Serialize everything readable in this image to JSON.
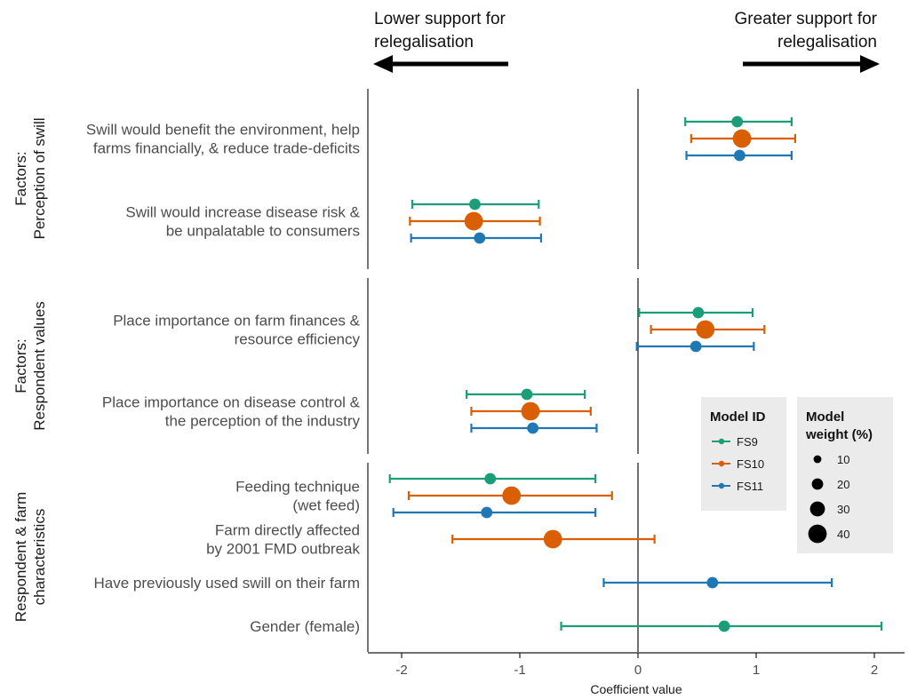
{
  "chart_data": {
    "type": "scatter",
    "title": "",
    "xlabel": "Coefficient value",
    "ylabel": "",
    "xlim": [
      -2.3,
      2.3
    ],
    "xticks": [
      -2,
      -1,
      0,
      1,
      2
    ],
    "xtick_labels": [
      "-2",
      "-1",
      "0",
      "1",
      "2"
    ],
    "grid": false,
    "direction_labels": {
      "lower": [
        "Lower support for",
        "relegalisation"
      ],
      "greater": [
        "Greater support for",
        "relegalisation"
      ]
    },
    "colors": {
      "FS9": "#1b9e77",
      "FS10": "#d95f02",
      "FS11": "#1f78b4"
    },
    "groups": [
      {
        "id": "perception",
        "label_lines": [
          "Factors:",
          "Perception of swill"
        ],
        "factors": [
          {
            "label_lines": [
              "Swill would benefit the environment, help",
              "farms financially, & reduce trade-deficits"
            ],
            "estimates": [
              {
                "model": "FS9",
                "coef": 0.84,
                "low": 0.4,
                "high": 1.3
              },
              {
                "model": "FS10",
                "coef": 0.88,
                "low": 0.45,
                "high": 1.33
              },
              {
                "model": "FS11",
                "coef": 0.86,
                "low": 0.41,
                "high": 1.3
              }
            ]
          },
          {
            "label_lines": [
              "Swill would increase disease risk &",
              "be unpalatable to consumers"
            ],
            "estimates": [
              {
                "model": "FS9",
                "coef": -1.38,
                "low": -1.91,
                "high": -0.84
              },
              {
                "model": "FS10",
                "coef": -1.39,
                "low": -1.93,
                "high": -0.83
              },
              {
                "model": "FS11",
                "coef": -1.34,
                "low": -1.92,
                "high": -0.82
              }
            ]
          }
        ]
      },
      {
        "id": "values",
        "label_lines": [
          "Factors:",
          "Respondent values"
        ],
        "factors": [
          {
            "label_lines": [
              "Place importance on farm finances &",
              "resource efficiency"
            ],
            "estimates": [
              {
                "model": "FS9",
                "coef": 0.51,
                "low": 0.01,
                "high": 0.97
              },
              {
                "model": "FS10",
                "coef": 0.57,
                "low": 0.11,
                "high": 1.07
              },
              {
                "model": "FS11",
                "coef": 0.49,
                "low": -0.01,
                "high": 0.98
              }
            ]
          },
          {
            "label_lines": [
              "Place importance on disease control &",
              "the perception of the industry"
            ],
            "estimates": [
              {
                "model": "FS9",
                "coef": -0.94,
                "low": -1.45,
                "high": -0.45
              },
              {
                "model": "FS10",
                "coef": -0.91,
                "low": -1.41,
                "high": -0.4
              },
              {
                "model": "FS11",
                "coef": -0.89,
                "low": -1.41,
                "high": -0.35
              }
            ]
          }
        ]
      },
      {
        "id": "characteristics",
        "label_lines": [
          "Respondent & farm",
          "characteristics"
        ],
        "factors": [
          {
            "label_lines": [
              "Feeding technique",
              "(wet feed)"
            ],
            "estimates": [
              {
                "model": "FS9",
                "coef": -1.25,
                "low": -2.1,
                "high": -0.36
              },
              {
                "model": "FS10",
                "coef": -1.07,
                "low": -1.94,
                "high": -0.22
              },
              {
                "model": "FS11",
                "coef": -1.28,
                "low": -2.07,
                "high": -0.36
              }
            ]
          },
          {
            "label_lines": [
              "Farm directly affected",
              "by 2001 FMD outbreak"
            ],
            "estimates": [
              {
                "model": "FS10",
                "coef": -0.72,
                "low": -1.57,
                "high": 0.14
              }
            ]
          },
          {
            "label_lines": [
              "Have previously used swill on their farm"
            ],
            "estimates": [
              {
                "model": "FS11",
                "coef": 0.63,
                "low": -0.29,
                "high": 1.64
              }
            ]
          },
          {
            "label_lines": [
              "Gender (female)"
            ],
            "estimates": [
              {
                "model": "FS9",
                "coef": 0.73,
                "low": -0.65,
                "high": 2.06
              }
            ]
          }
        ]
      }
    ],
    "legend": {
      "placement": "bottom-right",
      "model": {
        "title": "Model ID",
        "entries": [
          {
            "model": "FS9",
            "weight": 20
          },
          {
            "model": "FS10",
            "weight": 40
          },
          {
            "model": "FS11",
            "weight": 20
          }
        ]
      },
      "weight": {
        "title_lines": [
          "Model",
          "weight (%)"
        ],
        "values": [
          10,
          20,
          30,
          40
        ]
      }
    }
  }
}
